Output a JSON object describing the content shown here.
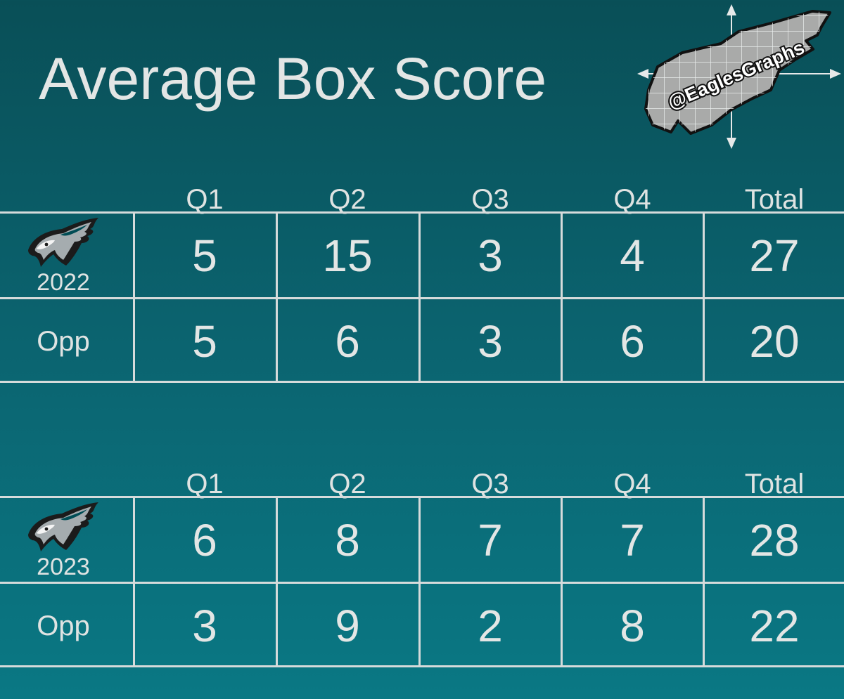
{
  "title": "Average Box Score",
  "watermark": "@EaglesGraphs",
  "icons": {
    "team_logo": "eagles-head-icon",
    "brand_logo": "eagles-graphs-logo"
  },
  "colors": {
    "background_top": "#094f57",
    "background_bottom": "#0a7884",
    "text": "#e3e6e5",
    "grid_lines": "#d6dbdb"
  },
  "tables": [
    {
      "season": "2022",
      "columns": [
        "Q1",
        "Q2",
        "Q3",
        "Q4",
        "Total"
      ],
      "rows": [
        {
          "label": "2022",
          "values": [
            "5",
            "15",
            "3",
            "4",
            "27"
          ]
        },
        {
          "label": "Opp",
          "values": [
            "5",
            "6",
            "3",
            "6",
            "20"
          ]
        }
      ]
    },
    {
      "season": "2023",
      "columns": [
        "Q1",
        "Q2",
        "Q3",
        "Q4",
        "Total"
      ],
      "rows": [
        {
          "label": "2023",
          "values": [
            "6",
            "8",
            "7",
            "7",
            "28"
          ]
        },
        {
          "label": "Opp",
          "values": [
            "3",
            "9",
            "2",
            "8",
            "22"
          ]
        }
      ]
    }
  ]
}
